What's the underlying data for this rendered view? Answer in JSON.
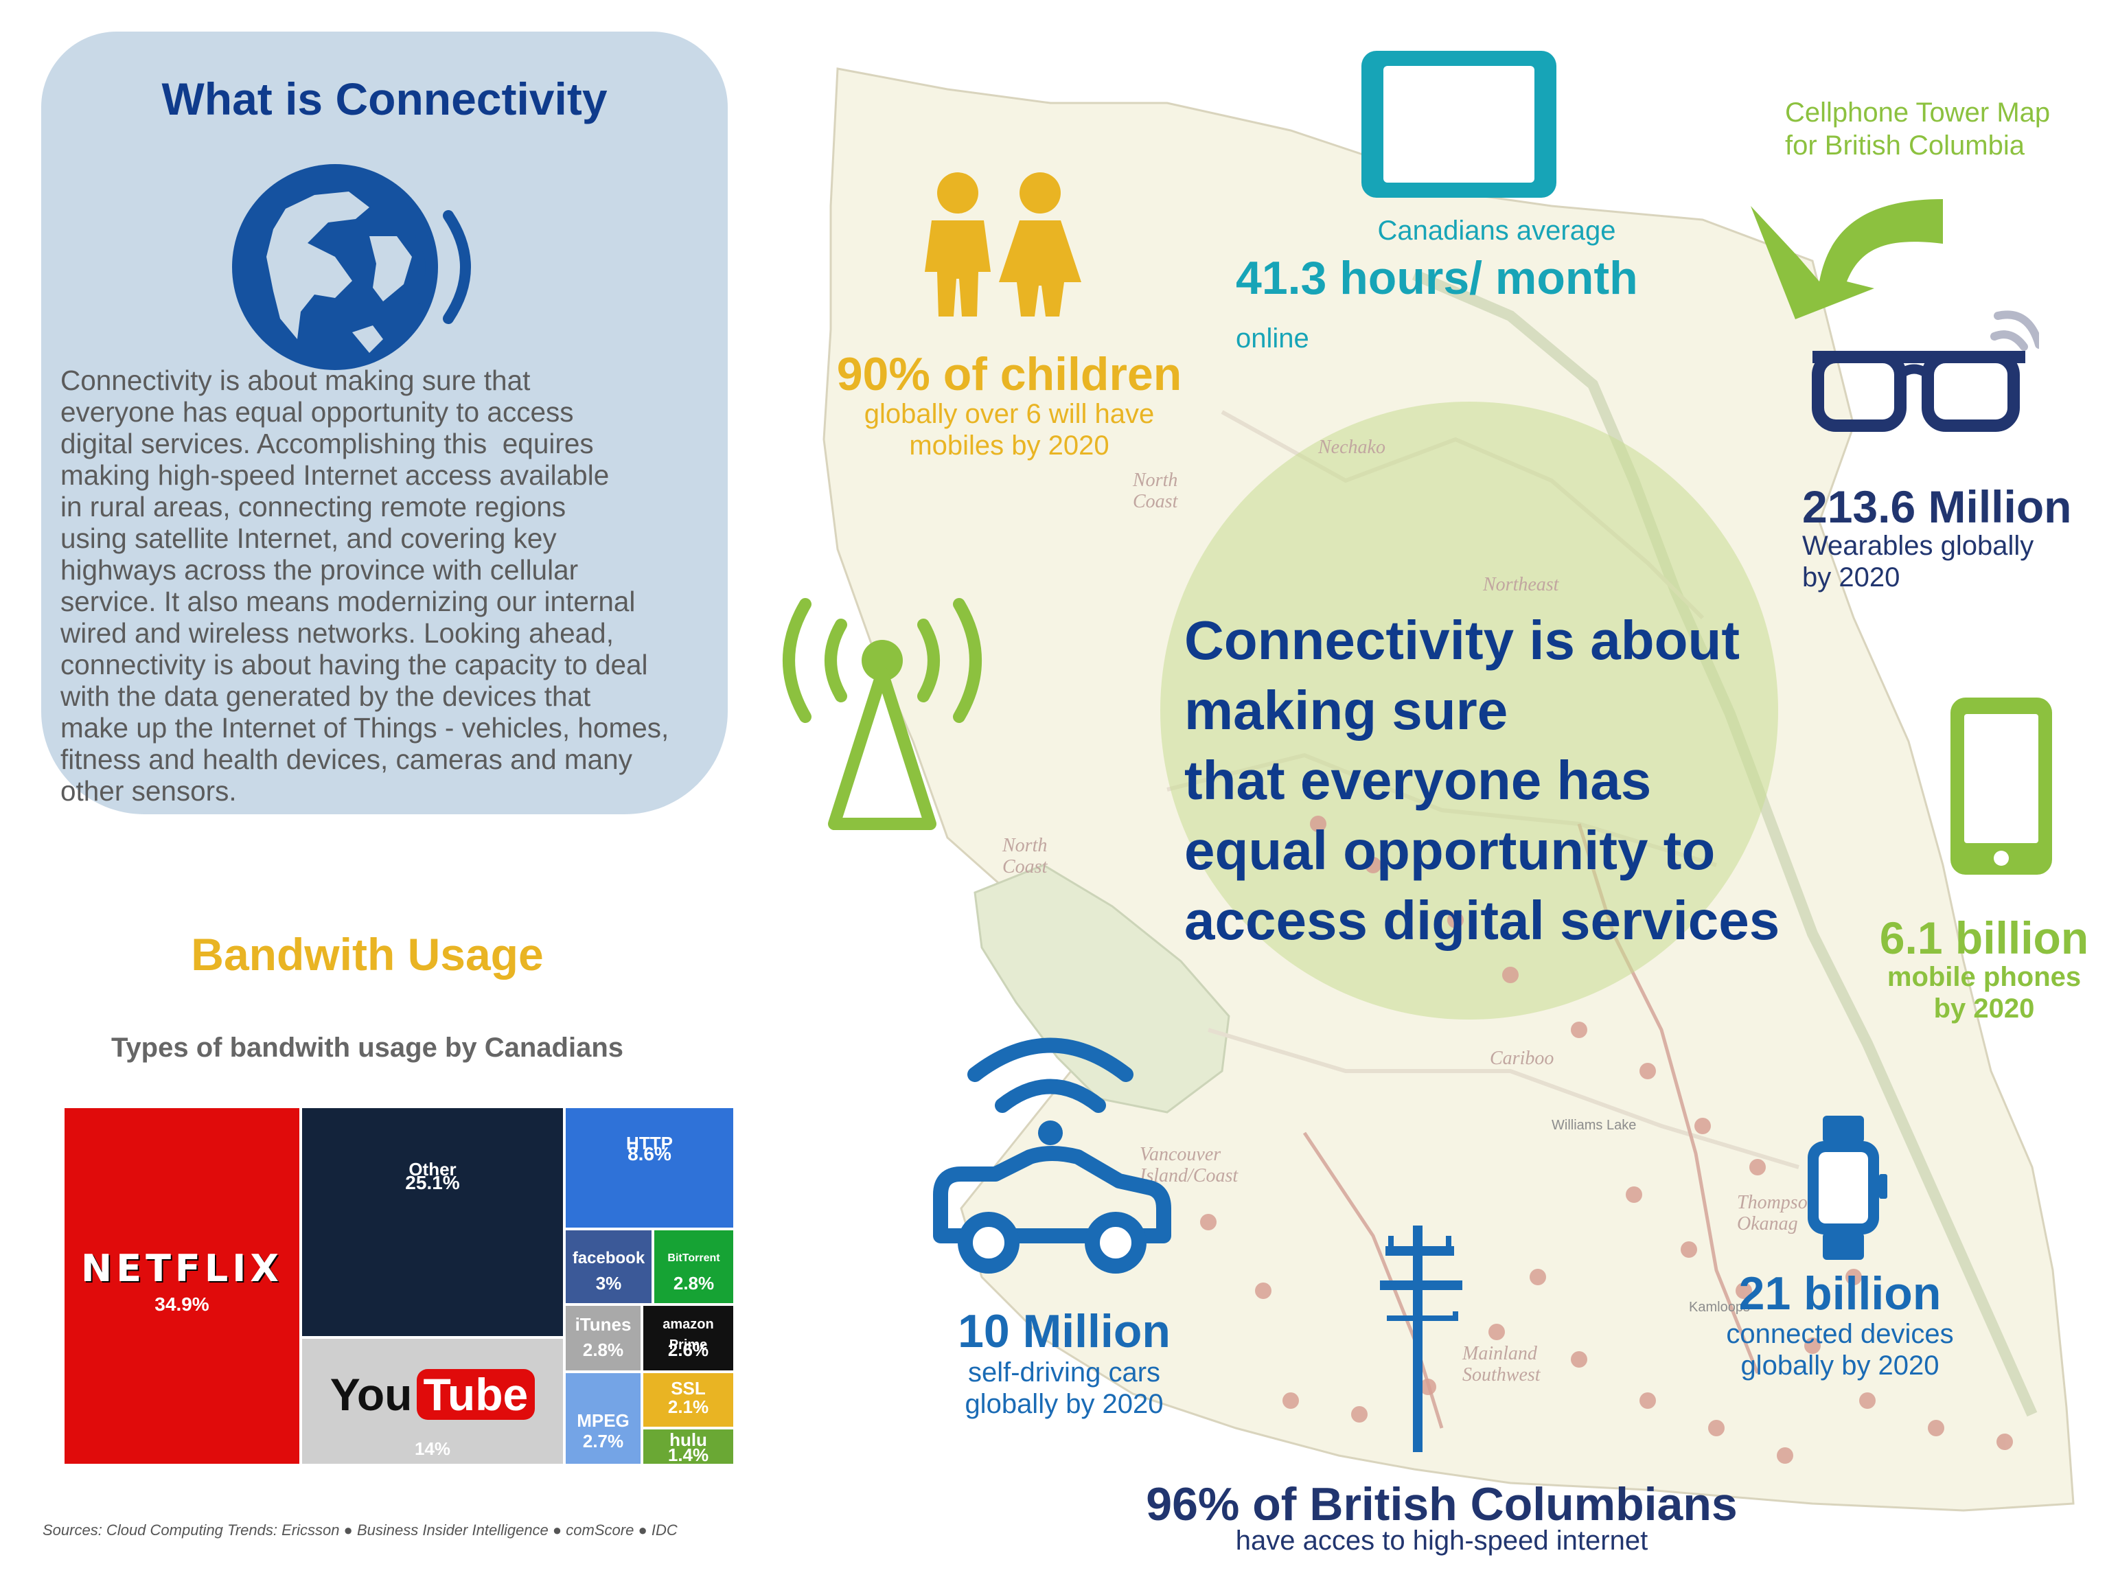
{
  "intro": {
    "title": "What is Connectivity",
    "body": "Connectivity is about making sure that\neveryone has equal opportunity to access\ndigital services. Accomplishing this  equires\nmaking high-speed Internet access available\nin rural areas, connecting remote regions\nusing satellite Internet, and covering key\nhighways across the province with cellular\nservice. It also means modernizing our internal\nwired and wireless networks. Looking ahead,\nconnectivity is about having the capacity to deal\nwith the data generated by the devices that\nmake up the Internet of Things - vehicles, homes,\nfitness and health devices, cameras and many\nother sensors."
  },
  "stats": {
    "children": {
      "big": "90% of children",
      "sub": "globally over 6 will have\nmobiles by 2020"
    },
    "online": {
      "sub": "Canadians average",
      "big": "41.3 hours/ month",
      "suffix": "online"
    },
    "tower_map": {
      "label": "Cellphone Tower Map\nfor British Columbia"
    },
    "wearables": {
      "big": "213.6 Million",
      "sub": "Wearables globally\nby 2020"
    },
    "phones": {
      "big": "6.1 billion",
      "sub": "mobile phones\nby 2020"
    },
    "cars": {
      "big": "10 Million",
      "sub": "self-driving cars\nglobally by 2020"
    },
    "devices": {
      "big": "21 billion",
      "sub": "connected devices\nglobally by 2020"
    },
    "bc": {
      "big": "96% of British Columbians",
      "sub": "have acces to high-speed internet"
    }
  },
  "quote": "Connectivity is about\nmaking sure\nthat everyone has\nequal opportunity to\naccess digital services",
  "map_labels": {
    "nechako": "Nechako",
    "north_coast_1": "North\nCoast",
    "northeast": "Northeast",
    "north_coast_2": "North\nCoast",
    "cariboo": "Cariboo",
    "vancouver_island": "Vancouver\nIsland/Coast",
    "williams_lake": "Williams Lake",
    "thompson": "Thompson\nOkanag",
    "mainland": "Mainland\nSouthwest",
    "kamloops": "Kamloops"
  },
  "bandwidth": {
    "title": "Bandwith Usage",
    "subtitle": "Types of bandwith usage by Canadians",
    "sources": "Sources: Cloud Computing Trends: Ericsson ● Business Insider Intelligence ● comScore ● IDC"
  },
  "chart_data": {
    "type": "treemap",
    "title": "Types of bandwith usage by Canadians",
    "items": [
      {
        "label": "NETFLIX",
        "value": 34.9,
        "value_label": "34.9%",
        "color": "#e00b0b"
      },
      {
        "label": "Other",
        "value": 25.1,
        "value_label": "25.1%",
        "color": "#13233b"
      },
      {
        "label": "YouTube",
        "value": 14,
        "value_label": "14%",
        "color": "#cfcfcf"
      },
      {
        "label": "HTTP",
        "value": 8.6,
        "value_label": "8.6%",
        "color": "#2f72d8"
      },
      {
        "label": "facebook",
        "value": 3,
        "value_label": "3%",
        "color": "#3b5998"
      },
      {
        "label": "BitTorrent",
        "value": 2.8,
        "value_label": "2.8%",
        "color": "#16a334"
      },
      {
        "label": "iTunes",
        "value": 2.8,
        "value_label": "2.8%",
        "color": "#a9a9a9"
      },
      {
        "label": "amazon Prime",
        "value": 2.6,
        "value_label": "2.6%",
        "color": "#111111"
      },
      {
        "label": "SSL",
        "value": 2.1,
        "value_label": "2.1%",
        "color": "#e9b423"
      },
      {
        "label": "MPEG",
        "value": 2.7,
        "value_label": "2.7%",
        "color": "#74a4e6"
      },
      {
        "label": "hulu",
        "value": 1.4,
        "value_label": "1.4%",
        "color": "#6aa834"
      }
    ]
  },
  "colors": {
    "navy": "#0f3b8c",
    "yellow": "#e9b423",
    "teal": "#17a4b7",
    "green": "#8cc13f",
    "blue": "#1a6bb5",
    "dark_navy": "#21356f"
  },
  "icons": [
    "globe-signal-icon",
    "children-icon",
    "tablet-icon",
    "curved-arrow-icon",
    "smart-glasses-icon",
    "radio-tower-icon",
    "smartphone-icon",
    "connected-car-icon",
    "utility-pole-icon",
    "smartwatch-icon"
  ]
}
